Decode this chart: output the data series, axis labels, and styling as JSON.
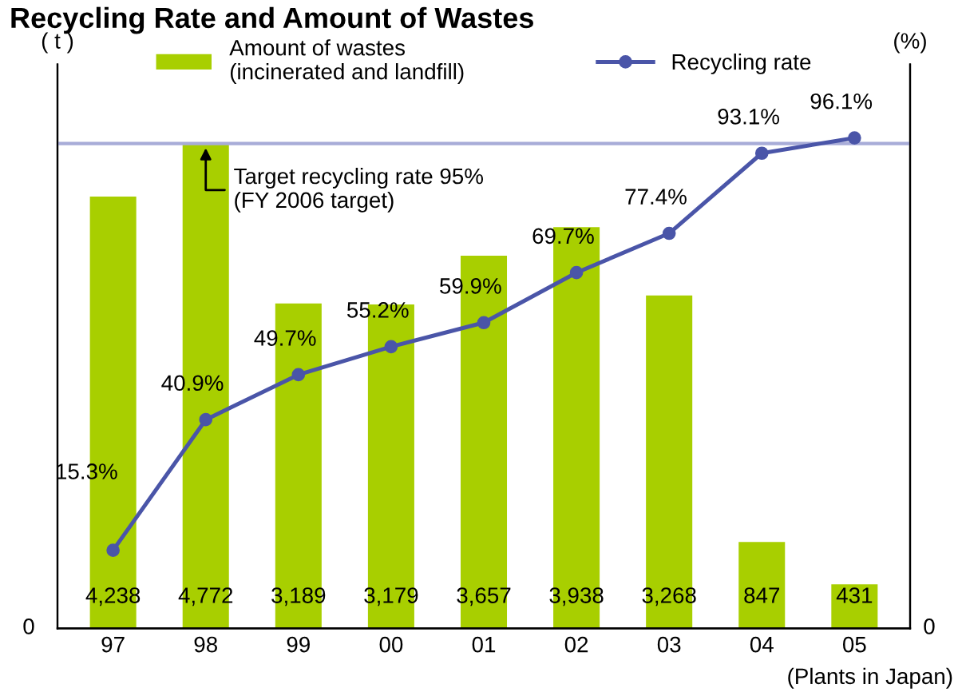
{
  "chart_data": {
    "type": "bar",
    "title": "Recycling Rate and Amount of Wastes",
    "ylabel": "( t )",
    "y2label": "(%)",
    "categories": [
      "97",
      "98",
      "99",
      "00",
      "01",
      "02",
      "03",
      "04",
      "05"
    ],
    "series": [
      {
        "name": "Amount of wastes\n(incinerated and landfill)",
        "color": "#a8cf00",
        "values": [
          4238,
          4772,
          3189,
          3179,
          3657,
          3938,
          3268,
          847,
          431
        ],
        "value_labels": [
          "4,238",
          "4,772",
          "3,189",
          "3,179",
          "3,657",
          "3,938",
          "3,268",
          "847",
          "431"
        ]
      },
      {
        "name": "Recycling rate",
        "type": "line",
        "axis": "y2",
        "color": "#4a55a8",
        "values": [
          15.3,
          40.9,
          49.7,
          55.2,
          59.9,
          69.7,
          77.4,
          93.1,
          96.1
        ],
        "value_labels": [
          "15.3%",
          "40.9%",
          "49.7%",
          "55.2%",
          "59.9%",
          "69.7%",
          "77.4%",
          "93.1%",
          "96.1%"
        ]
      }
    ],
    "data_labels": true,
    "marker": "circle",
    "line_style": "solid",
    "legend": "top",
    "ref_lines": [
      {
        "axis": "y2",
        "value": 95,
        "label": "Target recycling rate 95%\n(FY 2006 target)",
        "color": "#a8acd8"
      }
    ],
    "annotations": [
      "0",
      "0",
      "(Plants in Japan)"
    ]
  }
}
